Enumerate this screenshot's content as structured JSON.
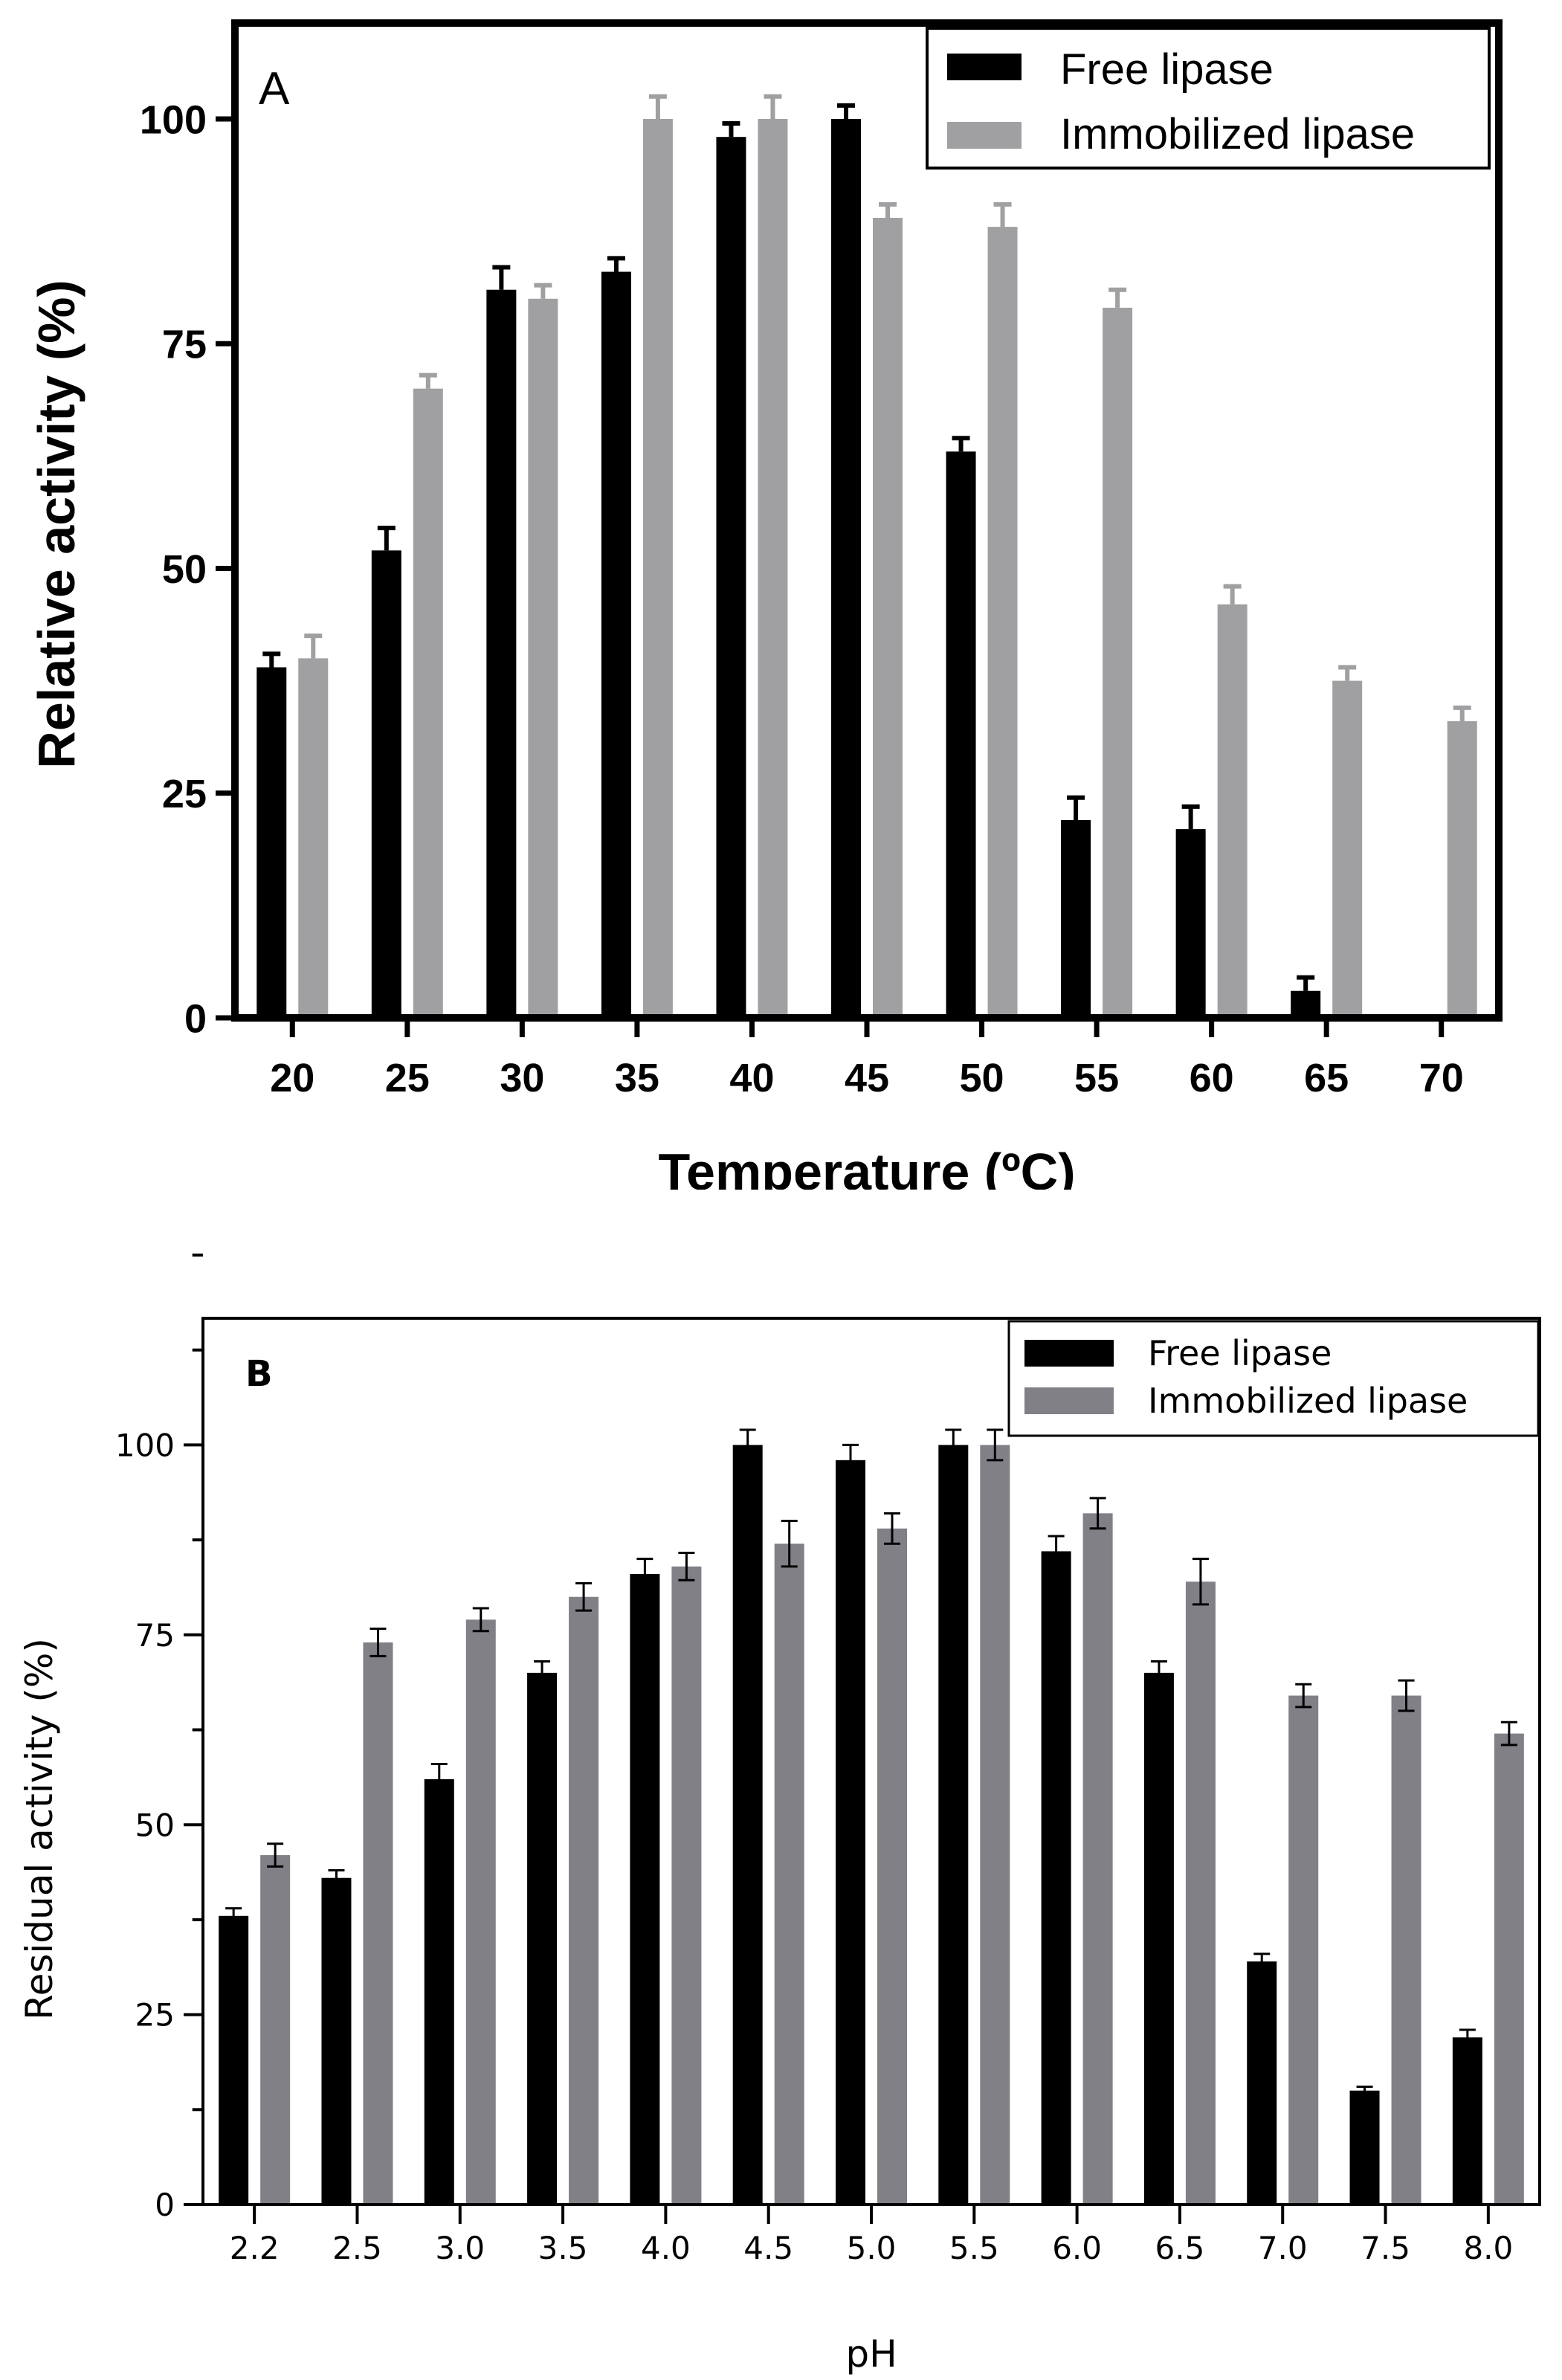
{
  "chart_data": [
    {
      "type": "bar",
      "panel_label": "A",
      "categories": [
        "20",
        "25",
        "30",
        "35",
        "40",
        "45",
        "50",
        "55",
        "60",
        "65",
        "70"
      ],
      "xlabel": "Temperature (ºC)",
      "ylabel": "Relative activity (%)",
      "ylim": [
        0,
        100
      ],
      "yticks": [
        0,
        25,
        50,
        75,
        100
      ],
      "series": [
        {
          "name": "Free lipase",
          "color": "#000000",
          "values": [
            39,
            52,
            81,
            83,
            98,
            100,
            63,
            22,
            21,
            3,
            0
          ],
          "errors": [
            1.5,
            2.5,
            2.5,
            1.5,
            1.5,
            1.5,
            1.5,
            2.5,
            2.5,
            1.5,
            0
          ]
        },
        {
          "name": "Immobilized lipase",
          "color": "#a0a0a2",
          "values": [
            40,
            70,
            80,
            100,
            100,
            89,
            88,
            79,
            46,
            37.5,
            33
          ],
          "errors": [
            2.5,
            1.5,
            1.5,
            2.5,
            2.5,
            1.5,
            2.5,
            2,
            2,
            1.5,
            1.5
          ]
        }
      ],
      "legend": "top-right"
    },
    {
      "type": "bar",
      "panel_label": "B",
      "categories": [
        "2.2",
        "2.5",
        "3.0",
        "3.5",
        "4.0",
        "4.5",
        "5.0",
        "5.5",
        "6.0",
        "6.5",
        "7.0",
        "7.5",
        "8.0"
      ],
      "xlabel": "pH",
      "ylabel": "Residual activity (%)",
      "ylim": [
        0,
        125
      ],
      "yticks": [
        0,
        25,
        50,
        75,
        100
      ],
      "series": [
        {
          "name": "Free lipase",
          "color": "#000000",
          "values": [
            38,
            43,
            56,
            70,
            83,
            100,
            98,
            100,
            86,
            70,
            32,
            15,
            22
          ],
          "errors": [
            1,
            1,
            2,
            1.5,
            2,
            2,
            2,
            2,
            2,
            1.5,
            1,
            0.5,
            1
          ]
        },
        {
          "name": "Immobilized lipase",
          "color": "#808086",
          "values": [
            46,
            74,
            77,
            80,
            84,
            87,
            89,
            100,
            91,
            82,
            67,
            67,
            62
          ],
          "errors": [
            1.5,
            1.8,
            1.5,
            1.8,
            1.8,
            3,
            2,
            2,
            2,
            3,
            1.5,
            2,
            1.5
          ]
        }
      ],
      "legend": "top-right"
    }
  ]
}
